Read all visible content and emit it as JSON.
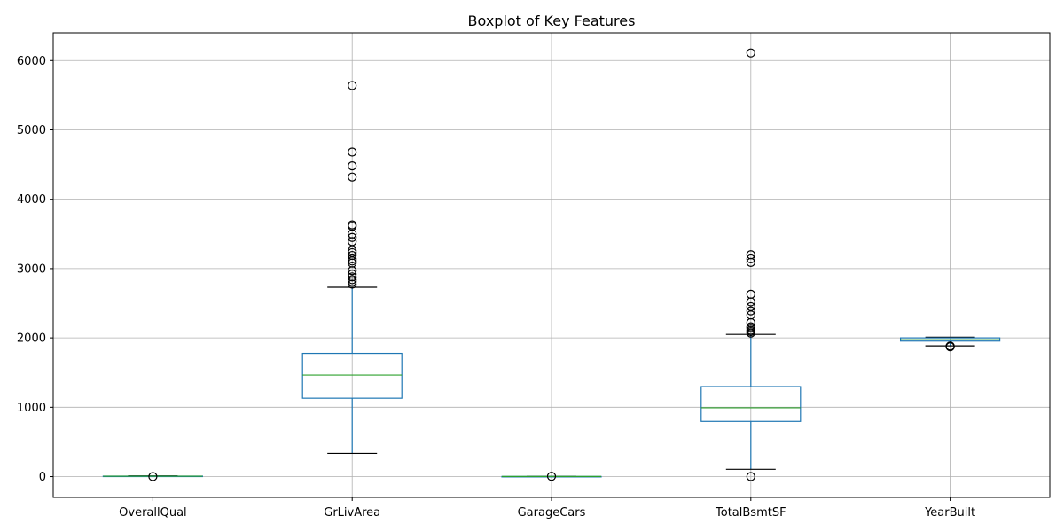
{
  "chart_data": {
    "type": "boxplot",
    "title": "Boxplot of Key Features",
    "xlabel": "",
    "ylabel": "",
    "ylim": [
      -300,
      6400
    ],
    "yticks": [
      0,
      1000,
      2000,
      3000,
      4000,
      5000,
      6000
    ],
    "grid": true,
    "categories": [
      "OverallQual",
      "GrLivArea",
      "GarageCars",
      "TotalBsmtSF",
      "YearBuilt"
    ],
    "boxes": [
      {
        "whisker_low": 2,
        "q1": 5,
        "median": 6,
        "q3": 7,
        "whisker_high": 10,
        "outliers": [
          1
        ]
      },
      {
        "whisker_low": 334,
        "q1": 1130,
        "median": 1464,
        "q3": 1777,
        "whisker_high": 2730,
        "outliers": [
          2775,
          2810,
          2840,
          2880,
          2920,
          2970,
          3080,
          3110,
          3140,
          3190,
          3230,
          3260,
          3390,
          3450,
          3500,
          3610,
          3630,
          4320,
          4480,
          4680,
          5640
        ]
      },
      {
        "whisker_low": 0,
        "q1": 1,
        "median": 2,
        "q3": 2,
        "whisker_high": 3,
        "outliers": [
          4
        ]
      },
      {
        "whisker_low": 105,
        "q1": 796,
        "median": 992,
        "q3": 1298,
        "whisker_high": 2050,
        "outliers": [
          0,
          2070,
          2090,
          2110,
          2140,
          2160,
          2220,
          2330,
          2390,
          2450,
          2520,
          2630,
          3090,
          3140,
          3200,
          6110
        ]
      },
      {
        "whisker_low": 1885,
        "q1": 1954,
        "median": 1973,
        "q3": 2000,
        "whisker_high": 2010,
        "outliers": [
          1872,
          1875,
          1880,
          1882
        ]
      }
    ]
  }
}
